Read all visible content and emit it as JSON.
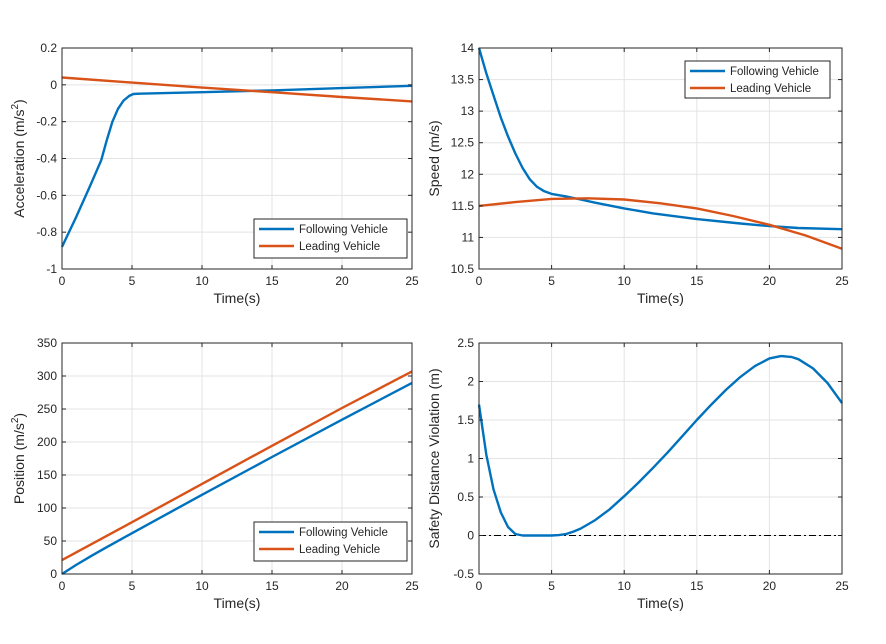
{
  "colors": {
    "following": "#0072BD",
    "leading": "#D95319",
    "grid": "#e3e3e3",
    "axis": "#262626"
  },
  "chart_data": [
    {
      "type": "line",
      "xlabel": "Time(s)",
      "ylabel": "Acceleration (m/s",
      "ylabel_sup": "2",
      "ylabel_end": ")",
      "xlim": [
        0,
        25
      ],
      "ylim": [
        -1,
        0.2
      ],
      "xticks": [
        0,
        5,
        10,
        15,
        20,
        25
      ],
      "yticks": [
        -1,
        -0.8,
        -0.6,
        -0.4,
        -0.2,
        0,
        0.2
      ],
      "xtick_labels": [
        "0",
        "5",
        "10",
        "15",
        "20",
        "25"
      ],
      "ytick_labels": [
        "-1",
        "-0.8",
        "-0.6",
        "-0.4",
        "-0.2",
        "0",
        "0.2"
      ],
      "legend": "bottom-right",
      "series": [
        {
          "name": "Following Vehicle",
          "color": "following",
          "x": [
            0,
            1,
            2,
            2.8,
            3.2,
            3.6,
            4.0,
            4.4,
            4.8,
            5.1,
            5.5,
            10,
            15,
            20,
            25
          ],
          "y": [
            -0.88,
            -0.72,
            -0.55,
            -0.41,
            -0.3,
            -0.2,
            -0.13,
            -0.085,
            -0.06,
            -0.05,
            -0.048,
            -0.04,
            -0.03,
            -0.018,
            -0.005
          ]
        },
        {
          "name": "Leading Vehicle",
          "color": "leading",
          "x": [
            0,
            5,
            10,
            15,
            20,
            25
          ],
          "y": [
            0.04,
            0.012,
            -0.015,
            -0.04,
            -0.066,
            -0.09
          ]
        }
      ]
    },
    {
      "type": "line",
      "xlabel": "Time(s)",
      "ylabel": "Speed (m/s)",
      "xlim": [
        0,
        25
      ],
      "ylim": [
        10.5,
        14
      ],
      "xticks": [
        0,
        5,
        10,
        15,
        20,
        25
      ],
      "yticks": [
        10.5,
        11,
        11.5,
        12,
        12.5,
        13,
        13.5,
        14
      ],
      "xtick_labels": [
        "0",
        "5",
        "10",
        "15",
        "20",
        "25"
      ],
      "ytick_labels": [
        "10.5",
        "11",
        "11.5",
        "12",
        "12.5",
        "13",
        "13.5",
        "14"
      ],
      "legend": "top-right",
      "series": [
        {
          "name": "Following Vehicle",
          "color": "following",
          "x": [
            0,
            0.5,
            1,
            1.5,
            2,
            2.5,
            3,
            3.5,
            4,
            4.5,
            5,
            6,
            7,
            8,
            10,
            12,
            15,
            18,
            20,
            22,
            25
          ],
          "y": [
            14,
            13.6,
            13.25,
            12.9,
            12.6,
            12.33,
            12.1,
            11.92,
            11.8,
            11.73,
            11.69,
            11.65,
            11.6,
            11.55,
            11.46,
            11.38,
            11.29,
            11.22,
            11.18,
            11.15,
            11.13
          ]
        },
        {
          "name": "Leading Vehicle",
          "color": "leading",
          "x": [
            0,
            2.5,
            5,
            7.5,
            10,
            12.5,
            15,
            17.5,
            20,
            22.5,
            25
          ],
          "y": [
            11.5,
            11.56,
            11.61,
            11.62,
            11.6,
            11.54,
            11.46,
            11.34,
            11.2,
            11.03,
            10.82
          ]
        }
      ]
    },
    {
      "type": "line",
      "xlabel": "Time(s)",
      "ylabel": "Position (m/s",
      "ylabel_sup": "2",
      "ylabel_end": ")",
      "xlim": [
        0,
        25
      ],
      "ylim": [
        0,
        350
      ],
      "xticks": [
        0,
        5,
        10,
        15,
        20,
        25
      ],
      "yticks": [
        0,
        50,
        100,
        150,
        200,
        250,
        300,
        350
      ],
      "xtick_labels": [
        "0",
        "5",
        "10",
        "15",
        "20",
        "25"
      ],
      "ytick_labels": [
        "0",
        "50",
        "100",
        "150",
        "200",
        "250",
        "300",
        "350"
      ],
      "legend": "bottom-right",
      "series": [
        {
          "name": "Following Vehicle",
          "color": "following",
          "x": [
            0,
            1,
            2,
            3,
            5,
            10,
            15,
            20,
            25
          ],
          "y": [
            0,
            13.6,
            26.2,
            38.3,
            61.8,
            120,
            177.3,
            233.8,
            289.5
          ]
        },
        {
          "name": "Leading Vehicle",
          "color": "leading",
          "x": [
            0,
            5,
            10,
            15,
            20,
            25
          ],
          "y": [
            21,
            78.5,
            136.5,
            194.3,
            251.5,
            307
          ]
        }
      ]
    },
    {
      "type": "line",
      "xlabel": "Time(s)",
      "ylabel": "Safety Distance Violation (m)",
      "xlim": [
        0,
        25
      ],
      "ylim": [
        -0.5,
        2.5
      ],
      "xticks": [
        0,
        5,
        10,
        15,
        20,
        25
      ],
      "yticks": [
        -0.5,
        0,
        0.5,
        1,
        1.5,
        2,
        2.5
      ],
      "xtick_labels": [
        "0",
        "5",
        "10",
        "15",
        "20",
        "25"
      ],
      "ytick_labels": [
        "-0.5",
        "0",
        "0.5",
        "1",
        "1.5",
        "2",
        "2.5"
      ],
      "reference_line": {
        "y": 0,
        "style": "dash-dot"
      },
      "series": [
        {
          "name": "Safety Distance Violation",
          "color": "following",
          "x": [
            0,
            0.5,
            1,
            1.5,
            2,
            2.5,
            3,
            4,
            5,
            5.5,
            6,
            6.5,
            7,
            8,
            9,
            10,
            11,
            12,
            13,
            14,
            15,
            16,
            17,
            18,
            19,
            20,
            20.8,
            21.5,
            22,
            23,
            24,
            25
          ],
          "y": [
            1.7,
            1.05,
            0.6,
            0.3,
            0.11,
            0.02,
            0,
            0,
            0,
            0.005,
            0.02,
            0.05,
            0.09,
            0.2,
            0.34,
            0.51,
            0.69,
            0.88,
            1.08,
            1.29,
            1.5,
            1.7,
            1.89,
            2.06,
            2.2,
            2.3,
            2.33,
            2.32,
            2.29,
            2.17,
            1.98,
            1.72
          ]
        }
      ]
    }
  ]
}
